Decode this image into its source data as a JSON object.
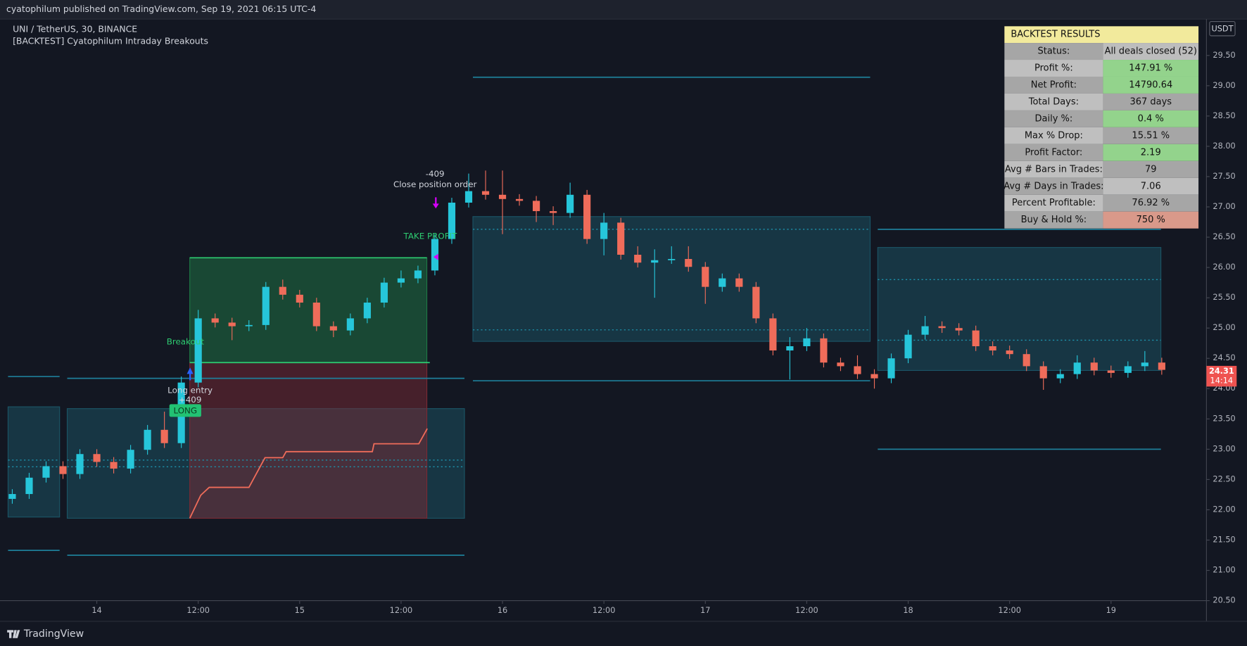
{
  "header": "cyatophilum published on TradingView.com, Sep 19, 2021 06:15 UTC-4",
  "footer": "TradingView",
  "chart_data": {
    "type": "candlestick",
    "title": "UNI / TetherUS, 30, BINANCE",
    "subtitle": "[BACKTEST] Cyatophilum Intraday Breakouts",
    "unit": "USDT",
    "up_color": "#26c6da",
    "down_color": "#ef6c5a",
    "x": [
      -10,
      -8,
      -6,
      -4,
      -2,
      0,
      2,
      4,
      6,
      8,
      10,
      12,
      14,
      16,
      18,
      20,
      22,
      24,
      26,
      28,
      30,
      32,
      34,
      36,
      38,
      40,
      42,
      44,
      46,
      48,
      50,
      52,
      54,
      56,
      58,
      60,
      62,
      64,
      66,
      68,
      70,
      72,
      74,
      76,
      78,
      80,
      82,
      84,
      86,
      88,
      90,
      92,
      94,
      96,
      98,
      100,
      102,
      104,
      106,
      108,
      110,
      112,
      114,
      116,
      118,
      120,
      122,
      124,
      126
    ],
    "open": [
      22.18,
      22.26,
      22.53,
      22.72,
      22.59,
      22.92,
      22.79,
      22.68,
      22.99,
      23.32,
      23.1,
      24.1,
      25.16,
      25.09,
      25.03,
      25.05,
      25.68,
      25.55,
      25.42,
      25.03,
      24.96,
      25.16,
      25.42,
      25.75,
      25.82,
      25.95,
      26.47,
      27.07,
      27.26,
      27.2,
      27.13,
      27.1,
      26.93,
      26.9,
      27.2,
      26.47,
      26.74,
      26.21,
      26.08,
      26.12,
      26.14,
      26.01,
      25.68,
      25.82,
      25.68,
      25.16,
      24.63,
      24.7,
      24.83,
      24.43,
      24.37,
      24.24,
      24.17,
      24.5,
      24.89,
      25.03,
      25.0,
      24.96,
      24.7,
      24.63,
      24.57,
      24.37,
      24.17,
      24.24,
      24.43,
      24.3,
      24.26,
      24.37,
      24.43
    ],
    "high": [
      22.34,
      22.61,
      22.8,
      22.8,
      23.0,
      23.0,
      22.87,
      23.07,
      23.4,
      23.62,
      24.2,
      25.3,
      25.24,
      25.17,
      25.13,
      25.76,
      25.8,
      25.63,
      25.5,
      25.11,
      25.24,
      25.5,
      25.83,
      25.95,
      26.03,
      26.55,
      27.15,
      27.55,
      27.6,
      27.6,
      27.21,
      27.18,
      27.01,
      27.4,
      27.28,
      26.9,
      26.82,
      26.35,
      26.3,
      26.35,
      26.35,
      26.09,
      25.9,
      25.9,
      25.76,
      25.24,
      24.85,
      25.0,
      24.91,
      24.51,
      24.55,
      24.32,
      24.58,
      24.97,
      25.2,
      25.11,
      25.08,
      25.04,
      24.78,
      24.71,
      24.65,
      24.45,
      24.32,
      24.55,
      24.51,
      24.38,
      24.45,
      24.62,
      24.51
    ],
    "low": [
      22.1,
      22.18,
      22.45,
      22.51,
      22.51,
      22.71,
      22.6,
      22.6,
      22.91,
      23.02,
      23.02,
      24.02,
      25.01,
      24.8,
      24.95,
      24.97,
      25.47,
      25.34,
      24.95,
      24.85,
      24.88,
      25.08,
      25.34,
      25.67,
      25.74,
      25.87,
      26.39,
      26.99,
      27.12,
      26.55,
      27.02,
      26.75,
      26.7,
      26.82,
      26.39,
      26.2,
      26.13,
      26.0,
      25.5,
      26.06,
      25.93,
      25.4,
      25.6,
      25.6,
      25.08,
      24.55,
      24.15,
      24.62,
      24.35,
      24.29,
      24.16,
      24.0,
      24.09,
      24.42,
      24.81,
      24.92,
      24.88,
      24.62,
      24.55,
      24.49,
      24.29,
      23.98,
      24.09,
      24.16,
      24.22,
      24.18,
      24.18,
      24.29,
      24.23
    ],
    "close": [
      22.26,
      22.53,
      22.72,
      22.59,
      22.92,
      22.79,
      22.68,
      22.99,
      23.32,
      23.1,
      24.1,
      25.16,
      25.09,
      25.03,
      25.05,
      25.68,
      25.55,
      25.42,
      25.03,
      24.96,
      25.16,
      25.42,
      25.75,
      25.82,
      25.95,
      26.47,
      27.07,
      27.26,
      27.2,
      27.13,
      27.1,
      26.93,
      26.9,
      27.2,
      26.47,
      26.74,
      26.21,
      26.08,
      26.12,
      26.14,
      26.01,
      25.68,
      25.82,
      25.68,
      25.16,
      24.63,
      24.7,
      24.83,
      24.43,
      24.37,
      24.24,
      24.17,
      24.5,
      24.89,
      25.03,
      25.0,
      24.96,
      24.7,
      24.63,
      24.57,
      24.37,
      24.17,
      24.24,
      24.43,
      24.3,
      24.26,
      24.37,
      24.43,
      24.31
    ],
    "xlim": [
      -10.7,
      131.1
    ],
    "xticks": [
      {
        "value": 0,
        "label": "14"
      },
      {
        "value": 12,
        "label": "12:00"
      },
      {
        "value": 24,
        "label": "15"
      },
      {
        "value": 36,
        "label": "12:00"
      },
      {
        "value": 48,
        "label": "16"
      },
      {
        "value": 60,
        "label": "12:00"
      },
      {
        "value": 72,
        "label": "17"
      },
      {
        "value": 84,
        "label": "12:00"
      },
      {
        "value": 96,
        "label": "18"
      },
      {
        "value": 108,
        "label": "12:00"
      },
      {
        "value": 120,
        "label": "19"
      }
    ],
    "ylim": [
      20.5,
      30.1
    ],
    "yticks": [
      {
        "value": 20.5,
        "label": "20.50"
      },
      {
        "value": 21,
        "label": "21.00"
      },
      {
        "value": 21.5,
        "label": "21.50"
      },
      {
        "value": 22,
        "label": "22.00"
      },
      {
        "value": 22.5,
        "label": "22.50"
      },
      {
        "value": 23,
        "label": "23.00"
      },
      {
        "value": 23.5,
        "label": "23.50"
      },
      {
        "value": 24,
        "label": "24.00"
      },
      {
        "value": 24.5,
        "label": "24.50"
      },
      {
        "value": 25,
        "label": "25.00"
      },
      {
        "value": 25.5,
        "label": "25.50"
      },
      {
        "value": 26,
        "label": "26.00"
      },
      {
        "value": 26.5,
        "label": "26.50"
      },
      {
        "value": 27,
        "label": "27.00"
      },
      {
        "value": 27.5,
        "label": "27.50"
      },
      {
        "value": 28,
        "label": "28.00"
      },
      {
        "value": 28.5,
        "label": "28.50"
      },
      {
        "value": 29,
        "label": "29.00"
      },
      {
        "value": 29.5,
        "label": "29.50"
      }
    ],
    "grid": false,
    "boxes": [
      {
        "x": [
          -10.5,
          -4.4
        ],
        "y": [
          21.88,
          23.7
        ],
        "color": "#1b5566"
      },
      {
        "x": [
          -3.5,
          43.5
        ],
        "y": [
          21.86,
          23.67
        ],
        "color": "#1b5566"
      },
      {
        "x": [
          44.5,
          91.5
        ],
        "y": [
          24.78,
          26.84
        ],
        "color": "#1b5566"
      },
      {
        "x": [
          92.4,
          125.9
        ],
        "y": [
          24.3,
          26.33
        ],
        "color": "#1b5566"
      },
      {
        "x": [
          11.0,
          39.05
        ],
        "y": [
          24.43,
          26.16
        ],
        "color": "#1f7a45"
      },
      {
        "x": [
          11.0,
          39.05
        ],
        "y": [
          21.86,
          24.43
        ],
        "color": "#7a2a33"
      }
    ],
    "levels": [
      {
        "x": [
          -10.5,
          -4.4
        ],
        "y": 24.2,
        "style": "solid",
        "color": "#1e7f99"
      },
      {
        "x": [
          -10.5,
          -4.4
        ],
        "y": 21.33,
        "style": "solid",
        "color": "#1e7f99"
      },
      {
        "x": [
          -10.5,
          -4.4
        ],
        "y": 22.82,
        "style": "dotted",
        "color": "#1e8fa8"
      },
      {
        "x": [
          -10.5,
          -4.4
        ],
        "y": 22.71,
        "style": "dotted",
        "color": "#1e8fa8"
      },
      {
        "x": [
          -3.5,
          43.5
        ],
        "y": 24.17,
        "style": "solid",
        "color": "#1e7f99"
      },
      {
        "x": [
          -3.5,
          43.5
        ],
        "y": 21.25,
        "style": "solid",
        "color": "#1e7f99"
      },
      {
        "x": [
          -3.5,
          43.5
        ],
        "y": 22.82,
        "style": "dotted",
        "color": "#1e8fa8"
      },
      {
        "x": [
          -3.5,
          43.5
        ],
        "y": 22.71,
        "style": "dotted",
        "color": "#1e8fa8"
      },
      {
        "x": [
          44.5,
          91.5
        ],
        "y": 29.14,
        "style": "solid",
        "color": "#1e7f99"
      },
      {
        "x": [
          44.5,
          91.5
        ],
        "y": 24.13,
        "style": "solid",
        "color": "#1e7f99"
      },
      {
        "x": [
          44.5,
          91.5
        ],
        "y": 26.63,
        "style": "dotted",
        "color": "#1e8fa8"
      },
      {
        "x": [
          44.5,
          91.5
        ],
        "y": 24.97,
        "style": "dotted",
        "color": "#1e8fa8"
      },
      {
        "x": [
          92.4,
          125.9
        ],
        "y": 26.63,
        "style": "solid",
        "color": "#1e7f99"
      },
      {
        "x": [
          92.4,
          125.9
        ],
        "y": 23.0,
        "style": "solid",
        "color": "#1e7f99"
      },
      {
        "x": [
          92.4,
          125.9
        ],
        "y": 25.8,
        "style": "dotted",
        "color": "#1e8fa8"
      },
      {
        "x": [
          92.4,
          125.9
        ],
        "y": 24.8,
        "style": "dotted",
        "color": "#1e8fa8"
      },
      {
        "x": [
          11.0,
          39.05
        ],
        "y": 26.16,
        "style": "solid",
        "color": "#2ecc71"
      },
      {
        "x": [
          11.0,
          39.4
        ],
        "y": 24.43,
        "style": "solid",
        "color": "#2ecc71"
      }
    ],
    "trail": {
      "x": [
        11.0,
        12.3,
        13.3,
        18.0,
        19.9,
        22.0,
        22.4,
        32.6,
        32.8,
        38.1,
        39.1
      ],
      "y": [
        21.86,
        22.24,
        22.37,
        22.37,
        22.86,
        22.86,
        22.96,
        22.96,
        23.09,
        23.09,
        23.34
      ],
      "color": "#ef6c5a"
    },
    "annotations": {
      "breakout": "Breakout",
      "entry": "Long entry",
      "entry_qty": "+409",
      "side": "LONG",
      "exit_qty": "-409",
      "exit": "Close position order",
      "take_profit": "TAKE PROFIT"
    },
    "last_price": {
      "value": 24.31,
      "label": "24.31"
    },
    "countdown": "14:14"
  },
  "table": {
    "title": "BACKTEST RESULTS",
    "rows": [
      {
        "label": "Status:",
        "value": "All deals closed (52)",
        "label_color": "#a6a6a6",
        "value_color": "#bdbdbd"
      },
      {
        "label": "Profit %:",
        "value": "147.91 %",
        "label_color": "#bfbfbf",
        "value_color": "#93d38c"
      },
      {
        "label": "Net Profit:",
        "value": "14790.64",
        "label_color": "#a6a6a6",
        "value_color": "#93d38c"
      },
      {
        "label": "Total Days:",
        "value": "367 days",
        "label_color": "#bfbfbf",
        "value_color": "#a6a6a6"
      },
      {
        "label": "Daily %:",
        "value": "0.4 %",
        "label_color": "#a6a6a6",
        "value_color": "#93d38c"
      },
      {
        "label": "Max % Drop:",
        "value": "15.51 %",
        "label_color": "#bfbfbf",
        "value_color": "#a6a6a6"
      },
      {
        "label": "Profit Factor:",
        "value": "2.19",
        "label_color": "#a6a6a6",
        "value_color": "#93d38c"
      },
      {
        "label": "Avg # Bars in Trades:",
        "value": "79",
        "label_color": "#bfbfbf",
        "value_color": "#a6a6a6"
      },
      {
        "label": "Avg # Days in Trades:",
        "value": "7.06",
        "label_color": "#a6a6a6",
        "value_color": "#bfbfbf"
      },
      {
        "label": "Percent Profitable:",
        "value": "76.92 %",
        "label_color": "#bfbfbf",
        "value_color": "#a6a6a6"
      },
      {
        "label": "Buy & Hold %:",
        "value": "750 %",
        "label_color": "#a6a6a6",
        "value_color": "#d9998a"
      }
    ],
    "title_color": "#f2ea9c"
  }
}
